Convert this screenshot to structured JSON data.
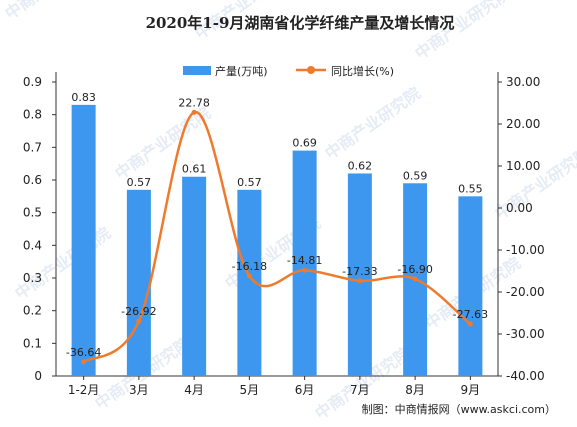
{
  "watermark": "中商产业研究院",
  "chart_data": {
    "type": "bar",
    "title": "2020年1-9月湖南省化学纤维产量及增长情况",
    "categories": [
      "1-2月",
      "3月",
      "4月",
      "5月",
      "6月",
      "7月",
      "8月",
      "9月"
    ],
    "series": [
      {
        "name": "产量(万吨)",
        "type": "bar",
        "axis": "left",
        "values": [
          0.83,
          0.57,
          0.61,
          0.57,
          0.69,
          0.62,
          0.59,
          0.55
        ],
        "labels": [
          "0.83",
          "0.57",
          "0.61",
          "0.57",
          "0.69",
          "0.62",
          "0.59",
          "0.55"
        ],
        "color": "#3d97ee"
      },
      {
        "name": "同比增长(%)",
        "type": "line",
        "axis": "right",
        "values": [
          -36.64,
          -26.92,
          22.78,
          -16.18,
          -14.81,
          -17.33,
          -16.9,
          -27.63
        ],
        "labels": [
          "-36.64",
          "-26.92",
          "22.78",
          "-16.18",
          "-14.81",
          "-17.33",
          "-16.90",
          "-27.63"
        ],
        "color": "#f07a2b"
      }
    ],
    "left_axis": {
      "ylim": [
        0,
        0.9
      ],
      "ticks": [
        0,
        0.1,
        0.2,
        0.3,
        0.4,
        0.5,
        0.6,
        0.7,
        0.8,
        0.9
      ],
      "tick_labels": [
        "0",
        "0.1",
        "0.2",
        "0.3",
        "0.4",
        "0.5",
        "0.6",
        "0.7",
        "0.8",
        "0.9"
      ]
    },
    "right_axis": {
      "ylim": [
        -40,
        30
      ],
      "ticks": [
        -40,
        -30,
        -20,
        -10,
        0,
        10,
        20,
        30
      ],
      "tick_labels": [
        "-40.00",
        "-30.00",
        "-20.00",
        "-10.00",
        "0.00",
        "10.00",
        "20.00",
        "30.00"
      ]
    },
    "grid": false,
    "legend_position": "top"
  },
  "source": "制图：中商情报网（www.askci.com）"
}
